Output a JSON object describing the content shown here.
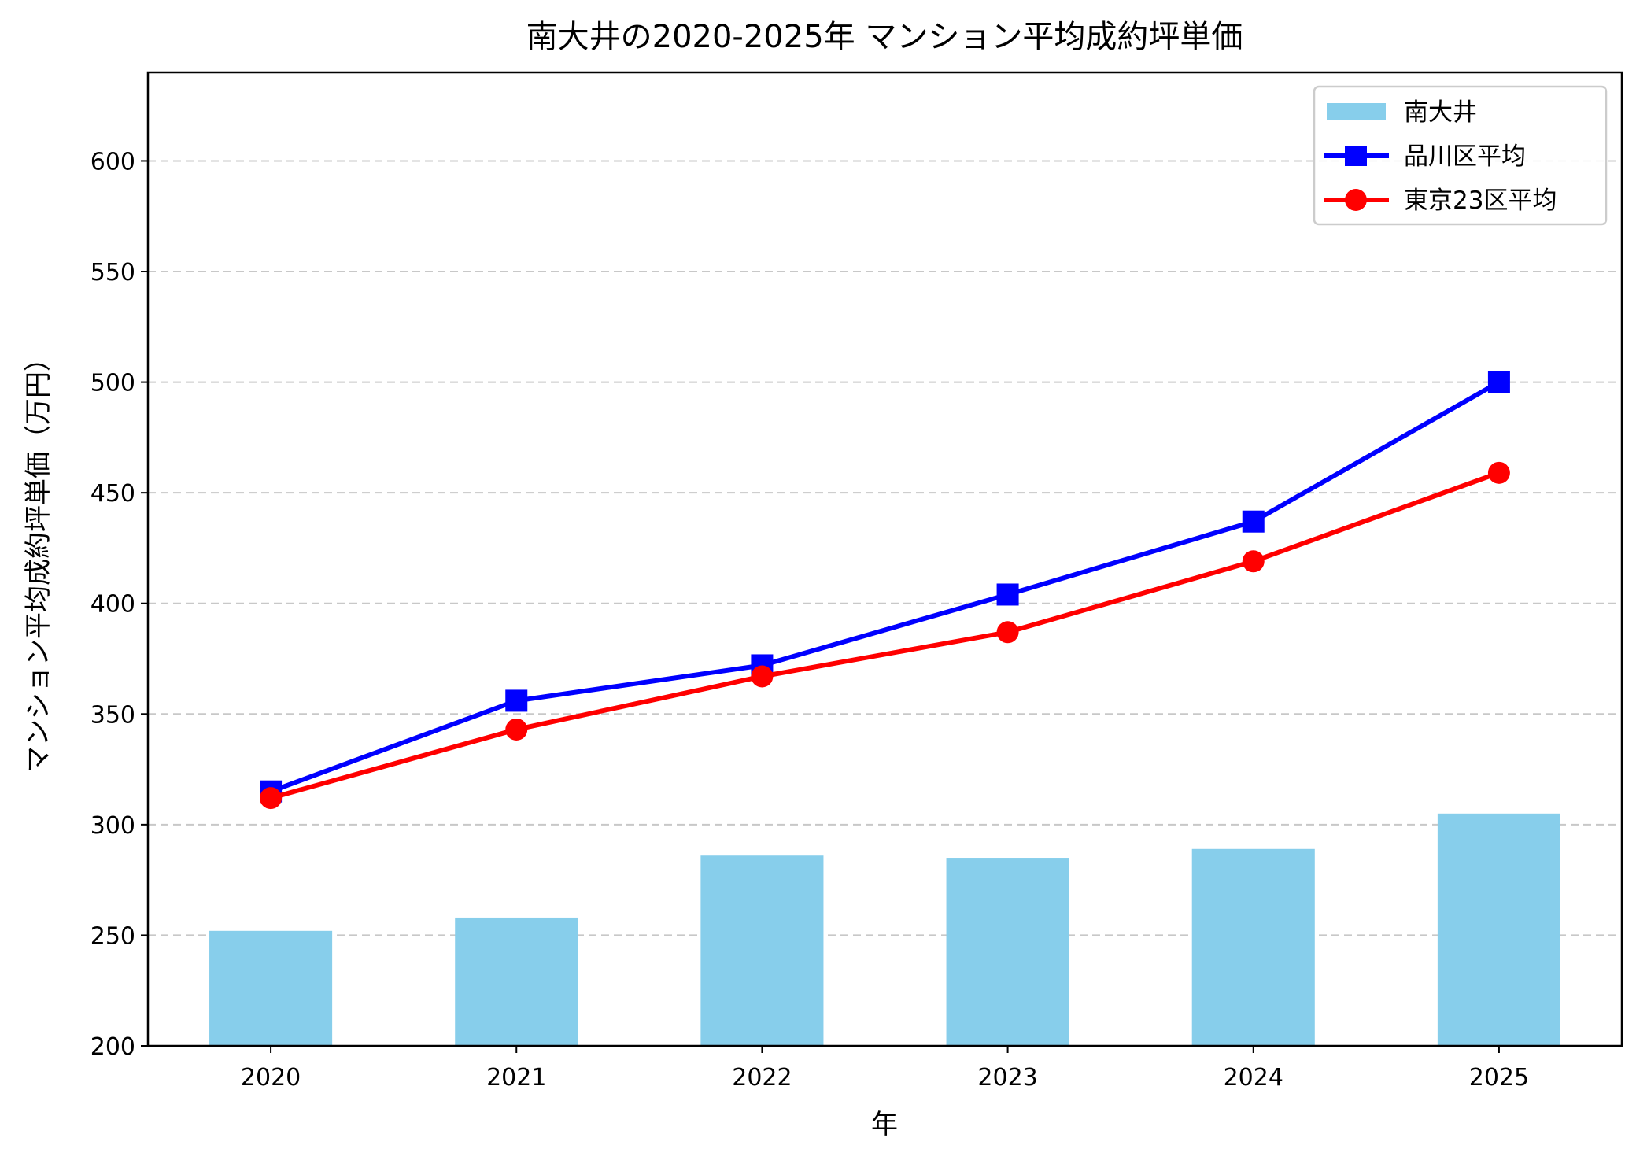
{
  "chart_data": {
    "type": "bar+line",
    "title": "南大井の2020-2025年 マンション平均成約坪単価",
    "xlabel": "年",
    "ylabel": "マンション平均成約坪単価（万円）",
    "categories": [
      "2020",
      "2021",
      "2022",
      "2023",
      "2024",
      "2025"
    ],
    "ylim": [
      200,
      640
    ],
    "xlim": [
      2019.5,
      2025.5
    ],
    "yticks": [
      200,
      250,
      300,
      350,
      400,
      450,
      500,
      550,
      600
    ],
    "grid": "y-dashed",
    "legend": "top-right",
    "series": [
      {
        "name": "南大井",
        "kind": "bar",
        "color": "#87CEEB",
        "values": [
          252,
          258,
          286,
          285,
          289,
          305
        ]
      },
      {
        "name": "品川区平均",
        "kind": "line",
        "marker": "square",
        "color": "#0000FF",
        "values": [
          315,
          356,
          372,
          404,
          437,
          500
        ]
      },
      {
        "name": "東京23区平均",
        "kind": "line",
        "marker": "circle",
        "color": "#FF0000",
        "values": [
          312,
          343,
          367,
          387,
          419,
          459
        ]
      }
    ]
  }
}
